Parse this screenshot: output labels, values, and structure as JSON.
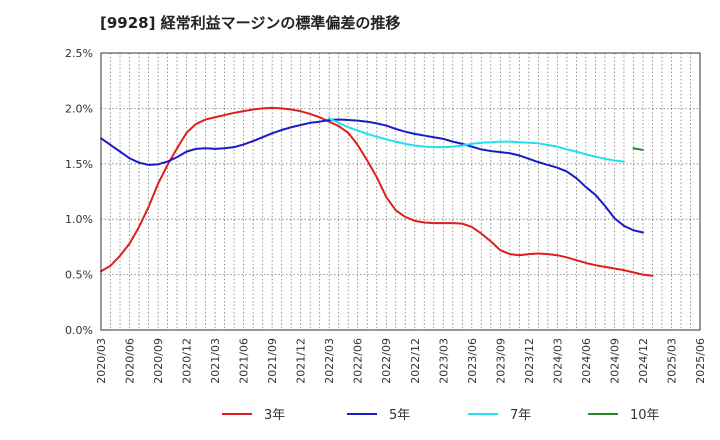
{
  "chart_data": {
    "type": "line",
    "title": "[9928]  経常利益マージンの標準偏差の推移",
    "xlabel": "",
    "ylabel": "",
    "x_ticks": [
      "2020/03",
      "2020/06",
      "2020/09",
      "2020/12",
      "2021/03",
      "2021/06",
      "2021/09",
      "2021/12",
      "2022/03",
      "2022/06",
      "2022/09",
      "2022/12",
      "2023/03",
      "2023/06",
      "2023/09",
      "2023/12",
      "2024/03",
      "2024/06",
      "2024/09",
      "2024/12",
      "2025/03",
      "2025/06"
    ],
    "y_ticks": [
      "0.0%",
      "0.5%",
      "1.0%",
      "1.5%",
      "2.0%",
      "2.5%"
    ],
    "ylim": [
      0,
      2.5
    ],
    "grid": true,
    "legend_position": "bottom",
    "colors": {
      "3年": "#dd1f1f",
      "5年": "#1a1ac8",
      "7年": "#22e0ee",
      "10年": "#2a8a2a"
    },
    "series": [
      {
        "name": "3年",
        "color": "#dd1f1f",
        "start_index": 0,
        "values": [
          0.53,
          0.58,
          0.67,
          0.78,
          0.93,
          1.11,
          1.32,
          1.49,
          1.64,
          1.78,
          1.86,
          1.9,
          1.92,
          1.94,
          1.96,
          1.975,
          1.99,
          2.0,
          2.005,
          2.0,
          1.99,
          1.975,
          1.95,
          1.92,
          1.88,
          1.84,
          1.78,
          1.67,
          1.53,
          1.38,
          1.2,
          1.08,
          1.02,
          0.985,
          0.97,
          0.965,
          0.965,
          0.965,
          0.96,
          0.93,
          0.87,
          0.8,
          0.72,
          0.685,
          0.675,
          0.685,
          0.69,
          0.685,
          0.675,
          0.655,
          0.63,
          0.605,
          0.585,
          0.57,
          0.555,
          0.54,
          0.52,
          0.5,
          0.49
        ]
      },
      {
        "name": "5年",
        "color": "#1a1ac8",
        "start_index": 0,
        "values": [
          1.73,
          1.67,
          1.61,
          1.55,
          1.51,
          1.49,
          1.495,
          1.52,
          1.56,
          1.61,
          1.635,
          1.64,
          1.635,
          1.64,
          1.65,
          1.675,
          1.705,
          1.74,
          1.775,
          1.805,
          1.83,
          1.85,
          1.87,
          1.88,
          1.895,
          1.9,
          1.895,
          1.89,
          1.88,
          1.865,
          1.845,
          1.815,
          1.79,
          1.77,
          1.755,
          1.74,
          1.725,
          1.7,
          1.68,
          1.655,
          1.63,
          1.615,
          1.605,
          1.595,
          1.575,
          1.545,
          1.515,
          1.49,
          1.465,
          1.43,
          1.37,
          1.29,
          1.22,
          1.12,
          1.01,
          0.94,
          0.9,
          0.88
        ]
      },
      {
        "name": "7年",
        "color": "#22e0ee",
        "start_index": 24,
        "values": [
          1.91,
          1.87,
          1.83,
          1.8,
          1.77,
          1.745,
          1.72,
          1.7,
          1.68,
          1.665,
          1.655,
          1.65,
          1.65,
          1.655,
          1.665,
          1.68,
          1.69,
          1.695,
          1.7,
          1.7,
          1.695,
          1.69,
          1.685,
          1.67,
          1.655,
          1.63,
          1.61,
          1.585,
          1.565,
          1.545,
          1.53,
          1.52
        ]
      },
      {
        "name": "10年",
        "color": "#2a8a2a",
        "start_index": 56,
        "values": [
          1.64,
          1.625
        ]
      }
    ],
    "legend": [
      "3年",
      "5年",
      "7年",
      "10年"
    ]
  }
}
